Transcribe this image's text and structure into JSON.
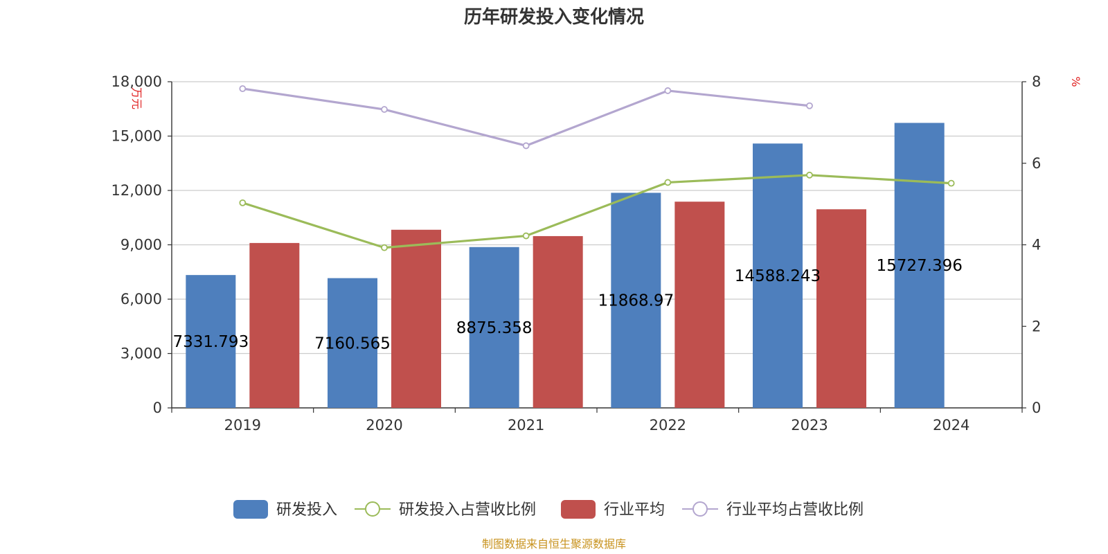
{
  "chart_data": {
    "type": "bar",
    "title": "历年研发投入变化情况",
    "categories": [
      "2019",
      "2020",
      "2021",
      "2022",
      "2023",
      "2024"
    ],
    "y_left": {
      "unit_label": "万元",
      "ticks": [
        "0",
        "3,000",
        "6,000",
        "9,000",
        "12,000",
        "15,000",
        "18,000"
      ],
      "ylim": [
        0,
        18000
      ]
    },
    "y_right": {
      "unit_label": "%",
      "ticks": [
        "0",
        "2",
        "4",
        "6",
        "8"
      ],
      "ylim": [
        0,
        8
      ]
    },
    "series": [
      {
        "name": "研发投入",
        "kind": "bar",
        "axis": "left",
        "color": "#4e7fbd",
        "values": [
          7331.793,
          7160.565,
          8875.358,
          11868.97,
          14588.243,
          15727.396
        ],
        "labels": [
          "7331.793",
          "7160.565",
          "8875.358",
          "11868.97",
          "14588.243",
          "15727.396"
        ]
      },
      {
        "name": "研发投入占营收比例",
        "kind": "line",
        "axis": "right",
        "color": "#9bbb59",
        "values": [
          5.03,
          3.93,
          4.22,
          5.53,
          5.71,
          5.51
        ]
      },
      {
        "name": "行业平均",
        "kind": "bar",
        "axis": "left",
        "color": "#c0504d",
        "values": [
          9100,
          9830,
          9480,
          11380,
          10960,
          null
        ]
      },
      {
        "name": "行业平均占营收比例",
        "kind": "line",
        "axis": "right",
        "color": "#b3a6cf",
        "values": [
          7.83,
          7.32,
          6.43,
          7.78,
          7.41,
          null
        ]
      }
    ],
    "grid": true,
    "legend_position": "bottom"
  },
  "source_note": "制图数据来自恒生聚源数据库"
}
